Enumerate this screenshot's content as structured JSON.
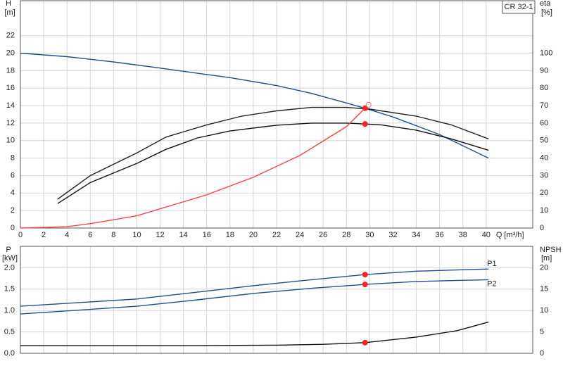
{
  "chart_data": [
    {
      "type": "line",
      "legend_label": "CR 32-1",
      "y_label": "H",
      "y_unit": "[m]",
      "y2_label": "eta",
      "y2_unit": "[%]",
      "x_label": "Q [m³/h]",
      "xlim": [
        0,
        44
      ],
      "xticks": [
        0,
        2,
        4,
        6,
        8,
        10,
        12,
        14,
        16,
        18,
        20,
        22,
        24,
        26,
        28,
        30,
        32,
        34,
        36,
        38,
        40
      ],
      "ylim": [
        0,
        26
      ],
      "yticks": [
        0,
        2,
        4,
        6,
        8,
        10,
        12,
        14,
        16,
        18,
        20,
        22
      ],
      "y2lim": [
        0,
        130
      ],
      "y2ticks": [
        0,
        10,
        20,
        30,
        40,
        50,
        60,
        70,
        80,
        90,
        100
      ],
      "grid": true,
      "x_tick_labels": true,
      "series": [
        {
          "color": "#1f4e8c",
          "x": [
            0,
            4,
            8,
            12,
            15.2,
            18,
            22,
            25,
            28,
            29.6,
            32,
            36,
            40.2
          ],
          "values": [
            20,
            19.6,
            19,
            18.3,
            17.7,
            17.2,
            16.3,
            15.4,
            14.3,
            13.7,
            12.7,
            10.7,
            8
          ]
        },
        {
          "color": "#222222",
          "axis": "y2",
          "x": [
            3.2,
            6,
            10,
            12.5,
            16,
            19,
            22,
            25,
            28,
            30,
            34,
            37,
            40.2
          ],
          "values": [
            16.5,
            30,
            43,
            52,
            59,
            64,
            67,
            69,
            69,
            68,
            64,
            59,
            51
          ]
        },
        {
          "color": "#111111",
          "axis": "y2",
          "x": [
            3.2,
            6,
            10,
            12.5,
            15.2,
            18,
            22,
            25,
            28,
            29.6,
            31,
            34,
            37,
            40.2
          ],
          "values": [
            14,
            26,
            37,
            45,
            51.5,
            55.5,
            58.8,
            60,
            60,
            59.5,
            59,
            56,
            51,
            44.5
          ]
        },
        {
          "color": "#ff4444",
          "x": [
            0,
            4,
            6,
            10,
            12,
            16,
            20,
            24,
            28,
            29.6
          ],
          "values": [
            0,
            0.15,
            0.5,
            1.4,
            2.2,
            3.8,
            5.8,
            8.3,
            11.6,
            13.7
          ]
        },
        {
          "color": "#ff2222",
          "marker": "dot",
          "x": [
            29.6
          ],
          "values": [
            13.7
          ]
        },
        {
          "color": "#ff2222",
          "marker": "dot",
          "axis": "y2",
          "x": [
            29.6
          ],
          "values": [
            59.5
          ]
        },
        {
          "color": "#ff6666",
          "marker": "circle",
          "x": [
            29.9
          ],
          "values": [
            14.1
          ]
        }
      ]
    },
    {
      "type": "line",
      "y_label": "P",
      "y_unit": "[kW]",
      "y2_label": "NPSH",
      "y2_unit": "[m]",
      "xlim": [
        0,
        44
      ],
      "xticks": [
        0,
        2,
        4,
        6,
        8,
        10,
        12,
        14,
        16,
        18,
        20,
        22,
        24,
        26,
        28,
        30,
        32,
        34,
        36,
        38,
        40
      ],
      "ylim": [
        0,
        2.5
      ],
      "yticks": [
        {
          "value": 0,
          "label": "0.0"
        },
        {
          "value": 0.5,
          "label": "0.5"
        },
        {
          "value": 1,
          "label": "1.0"
        },
        {
          "value": 1.5,
          "label": "1.5"
        },
        {
          "value": 2,
          "label": "2.0"
        }
      ],
      "y2lim": [
        0,
        25
      ],
      "y2ticks": [
        0,
        5,
        10,
        15,
        20
      ],
      "grid": true,
      "x_tick_labels": false,
      "series": [
        {
          "name": "P1",
          "color": "#1f4e8c",
          "x": [
            0,
            10,
            15.2,
            20,
            25,
            29.6,
            34,
            40.2
          ],
          "values": [
            1.1,
            1.27,
            1.43,
            1.58,
            1.72,
            1.84,
            1.92,
            1.97
          ]
        },
        {
          "name": "P2",
          "color": "#1f4e8c",
          "x": [
            0,
            10,
            15.2,
            20,
            25,
            29.6,
            34,
            40.2
          ],
          "values": [
            0.92,
            1.1,
            1.25,
            1.4,
            1.52,
            1.61,
            1.68,
            1.72
          ]
        },
        {
          "color": "#111111",
          "axis": "y2",
          "x": [
            0,
            15.2,
            22,
            26,
            29.6,
            34,
            37.5,
            40.2
          ],
          "values": [
            1.8,
            1.8,
            1.9,
            2.1,
            2.5,
            3.8,
            5.3,
            7.3
          ]
        },
        {
          "color": "#ff2222",
          "marker": "dot",
          "x": [
            29.6
          ],
          "values": [
            1.84
          ]
        },
        {
          "color": "#ff2222",
          "marker": "dot",
          "x": [
            29.6
          ],
          "values": [
            1.61
          ]
        },
        {
          "color": "#ff2222",
          "marker": "dot",
          "axis": "y2",
          "x": [
            29.6
          ],
          "values": [
            2.5
          ]
        }
      ]
    }
  ]
}
